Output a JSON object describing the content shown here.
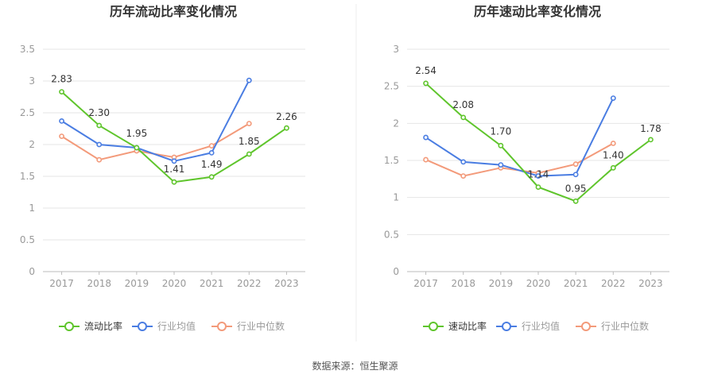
{
  "footer": {
    "source": "数据来源：恒生聚源"
  },
  "colors": {
    "main": "#5fc52c",
    "avg": "#4a7de2",
    "median": "#f39a7a",
    "axis": "#999999",
    "grid": "#e6e6e6",
    "divider": "#eeeeee"
  },
  "chart_data": [
    {
      "type": "line",
      "title": "历年流动比率变化情况",
      "categories": [
        "2017",
        "2018",
        "2019",
        "2020",
        "2021",
        "2022",
        "2023"
      ],
      "yticks": [
        "0",
        "0.5",
        "1",
        "1.5",
        "2",
        "2.5",
        "3",
        "3.5"
      ],
      "ylim": [
        0,
        3.5
      ],
      "grid": true,
      "legend_position": "bottom",
      "series": [
        {
          "name": "流动比率",
          "color": "#5fc52c",
          "values": [
            2.83,
            2.3,
            1.95,
            1.41,
            1.49,
            1.85,
            2.26
          ],
          "labels": [
            "2.83",
            "2.30",
            "1.95",
            "1.41",
            "1.49",
            "1.85",
            "2.26"
          ]
        },
        {
          "name": "行业均值",
          "color": "#4a7de2",
          "values": [
            2.37,
            2.0,
            1.95,
            1.74,
            1.87,
            3.01,
            null
          ]
        },
        {
          "name": "行业中位数",
          "color": "#f39a7a",
          "values": [
            2.13,
            1.76,
            1.9,
            1.8,
            1.98,
            2.33,
            null
          ]
        }
      ]
    },
    {
      "type": "line",
      "title": "历年速动比率变化情况",
      "categories": [
        "2017",
        "2018",
        "2019",
        "2020",
        "2021",
        "2022",
        "2023"
      ],
      "yticks": [
        "0",
        "0.5",
        "1",
        "1.5",
        "2",
        "2.5",
        "3"
      ],
      "ylim": [
        0,
        3
      ],
      "grid": true,
      "legend_position": "bottom",
      "series": [
        {
          "name": "速动比率",
          "color": "#5fc52c",
          "values": [
            2.54,
            2.08,
            1.7,
            1.14,
            0.95,
            1.4,
            1.78
          ],
          "labels": [
            "2.54",
            "2.08",
            "1.70",
            "1.14",
            "0.95",
            "1.40",
            "1.78"
          ]
        },
        {
          "name": "行业均值",
          "color": "#4a7de2",
          "values": [
            1.81,
            1.48,
            1.44,
            1.29,
            1.31,
            2.34,
            null
          ]
        },
        {
          "name": "行业中位数",
          "color": "#f39a7a",
          "values": [
            1.51,
            1.29,
            1.4,
            1.33,
            1.45,
            1.73,
            null
          ]
        }
      ]
    }
  ]
}
